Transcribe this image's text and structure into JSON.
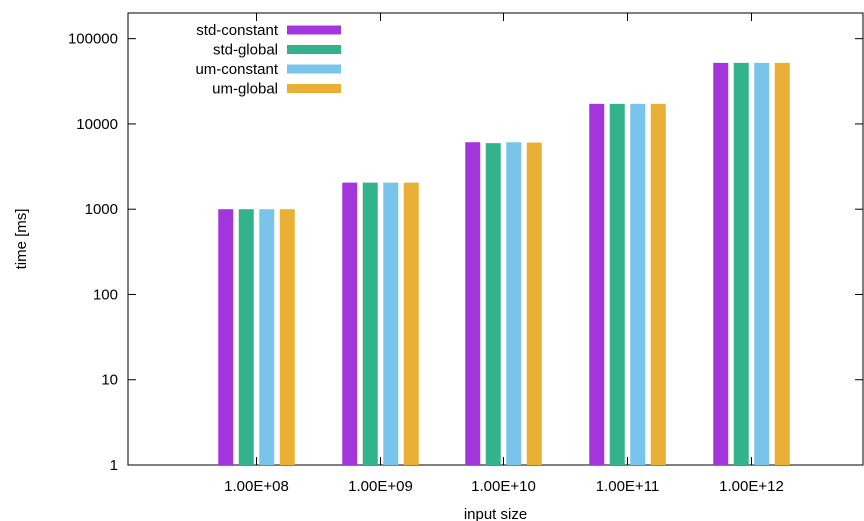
{
  "chart_data": {
    "type": "bar",
    "title": "",
    "xlabel": "input size",
    "ylabel": "time [ms]",
    "yscale": "log",
    "ylim": [
      1,
      200000
    ],
    "yticks": [
      1,
      10,
      100,
      1000,
      10000,
      100000
    ],
    "ytick_labels": [
      "1",
      "10",
      "100",
      "1000",
      "10000",
      "100000"
    ],
    "categories": [
      "1.00E+08",
      "1.00E+09",
      "1.00E+10",
      "1.00E+11",
      "1.00E+12"
    ],
    "legend_position": "top-left",
    "grid": false,
    "series": [
      {
        "name": "std-constant",
        "color": "#a335dd",
        "values": [
          1000,
          2050,
          6100,
          17200,
          52000
        ]
      },
      {
        "name": "std-global",
        "color": "#33b38c",
        "values": [
          1000,
          2050,
          5950,
          17200,
          52000
        ]
      },
      {
        "name": "um-constant",
        "color": "#79c4ea",
        "values": [
          1000,
          2050,
          6100,
          17200,
          52000
        ]
      },
      {
        "name": "um-global",
        "color": "#eab035",
        "values": [
          1000,
          2050,
          6050,
          17200,
          52000
        ]
      }
    ]
  }
}
